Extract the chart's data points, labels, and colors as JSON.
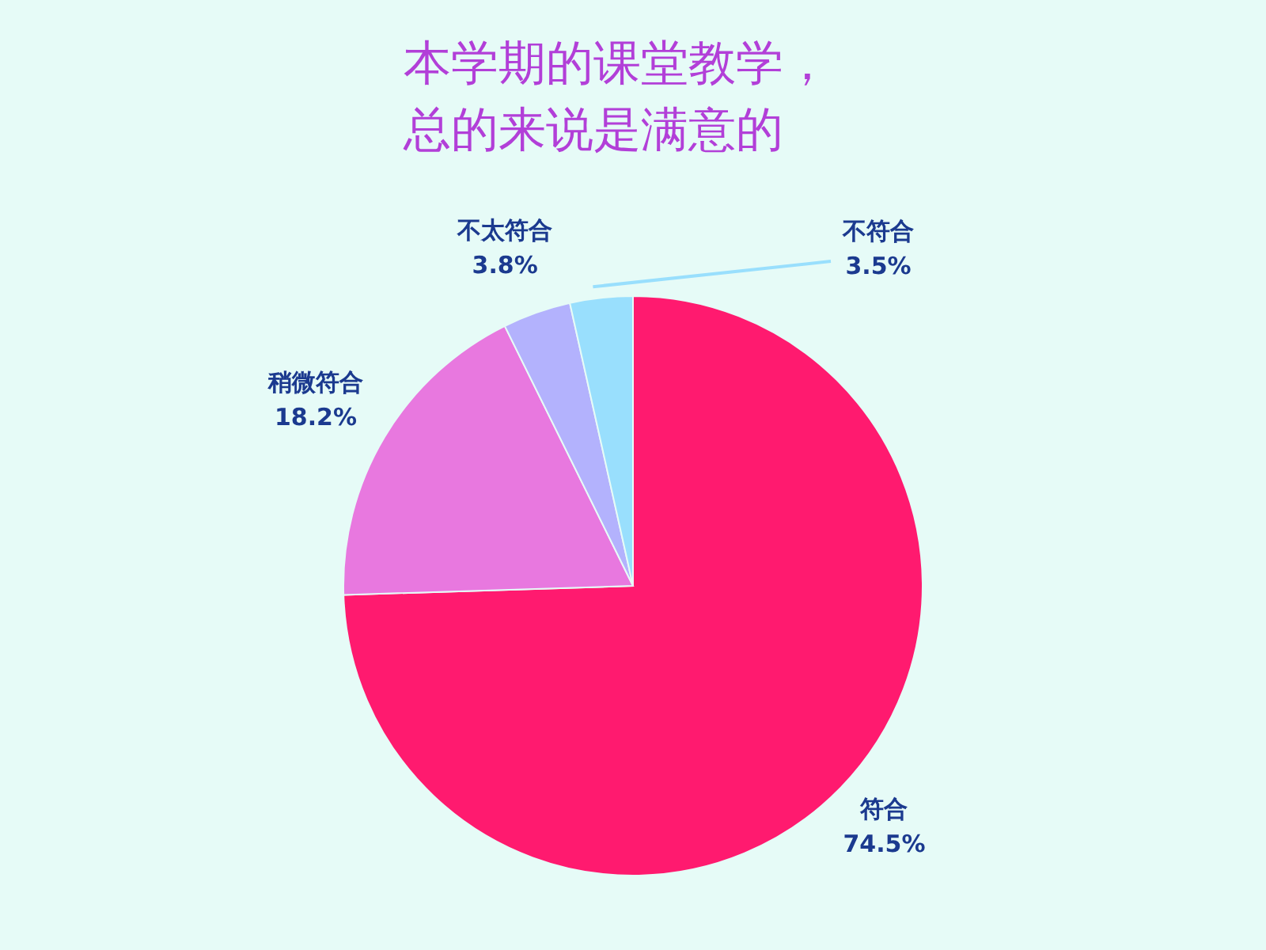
{
  "chart_data": {
    "type": "pie",
    "title": "本学期的课堂教学，总的来说是满意的",
    "categories": [
      "符合",
      "稍微符合",
      "不太符合",
      "不符合"
    ],
    "values": [
      74.5,
      18.2,
      3.8,
      3.5
    ],
    "value_labels": [
      "74.5%",
      "18.2%",
      "3.8%",
      "3.5%"
    ],
    "colors": [
      "#ff1a6f",
      "#e878df",
      "#b3b2fd",
      "#99dffd"
    ],
    "legend": false
  }
}
